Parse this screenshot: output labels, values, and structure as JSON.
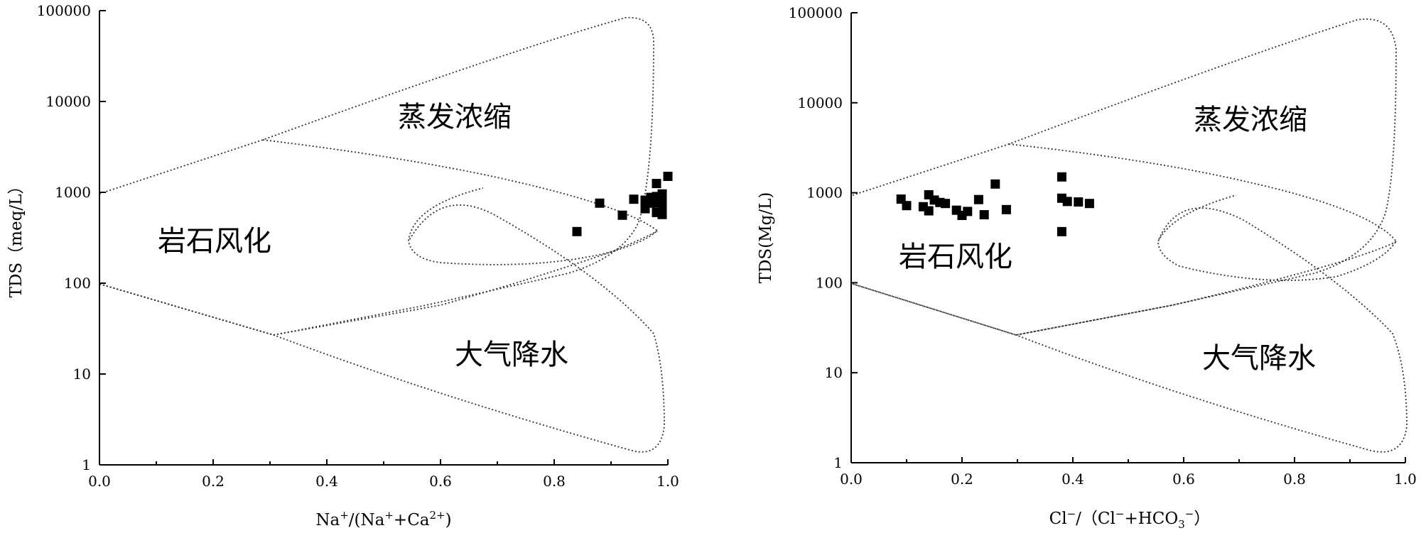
{
  "chart_data": [
    {
      "type": "scatter",
      "xlabel": {
        "base": "Na",
        "sup1": "+",
        "mid": "/(Na",
        "sup2": "+",
        "plus": "+Ca",
        "sup3": "2+",
        "end": ")"
      },
      "ylabel": "TDS（meq/L）",
      "xlim": [
        0,
        1
      ],
      "ylim": [
        1,
        100000
      ],
      "y_scale": "log",
      "x_ticks": [
        "0.0",
        "0.2",
        "0.4",
        "0.6",
        "0.8",
        "1.0"
      ],
      "y_ticks": [
        "1",
        "10",
        "100",
        "1000",
        "10000",
        "100000"
      ],
      "regions": [
        "蒸发浓缩",
        "岩石风化",
        "大气降水"
      ],
      "points": [
        [
          0.84,
          370
        ],
        [
          0.88,
          760
        ],
        [
          0.92,
          560
        ],
        [
          0.94,
          840
        ],
        [
          0.96,
          820
        ],
        [
          0.96,
          660
        ],
        [
          0.97,
          880
        ],
        [
          0.97,
          760
        ],
        [
          0.98,
          1250
        ],
        [
          0.98,
          900
        ],
        [
          0.98,
          760
        ],
        [
          0.98,
          600
        ],
        [
          0.99,
          960
        ],
        [
          0.99,
          820
        ],
        [
          0.99,
          690
        ],
        [
          0.99,
          570
        ],
        [
          1.0,
          1500
        ]
      ],
      "marker_color": "#000000"
    },
    {
      "type": "scatter",
      "xlabel": {
        "base": "Cl",
        "sup1": "−",
        "mid": "/（Cl",
        "sup2": "−",
        "plus": "+HCO",
        "sub": "3",
        "sup3": "−",
        "end": "）"
      },
      "ylabel": "TDS(Mg/L)",
      "xlim": [
        0,
        1
      ],
      "ylim": [
        1,
        100000
      ],
      "y_scale": "log",
      "x_ticks": [
        "0.0",
        "0.2",
        "0.4",
        "0.6",
        "0.8",
        "1.0"
      ],
      "y_ticks": [
        "1",
        "10",
        "100",
        "1000",
        "10000",
        "100000"
      ],
      "regions": [
        "蒸发浓缩",
        "岩石风化",
        "大气降水"
      ],
      "points": [
        [
          0.09,
          850
        ],
        [
          0.1,
          720
        ],
        [
          0.13,
          700
        ],
        [
          0.14,
          630
        ],
        [
          0.14,
          950
        ],
        [
          0.15,
          830
        ],
        [
          0.16,
          780
        ],
        [
          0.17,
          760
        ],
        [
          0.19,
          640
        ],
        [
          0.2,
          560
        ],
        [
          0.21,
          620
        ],
        [
          0.23,
          840
        ],
        [
          0.24,
          570
        ],
        [
          0.26,
          1250
        ],
        [
          0.28,
          650
        ],
        [
          0.38,
          1500
        ],
        [
          0.38,
          870
        ],
        [
          0.38,
          370
        ],
        [
          0.39,
          800
        ],
        [
          0.41,
          790
        ],
        [
          0.43,
          760
        ]
      ],
      "marker_color": "#000000"
    }
  ]
}
